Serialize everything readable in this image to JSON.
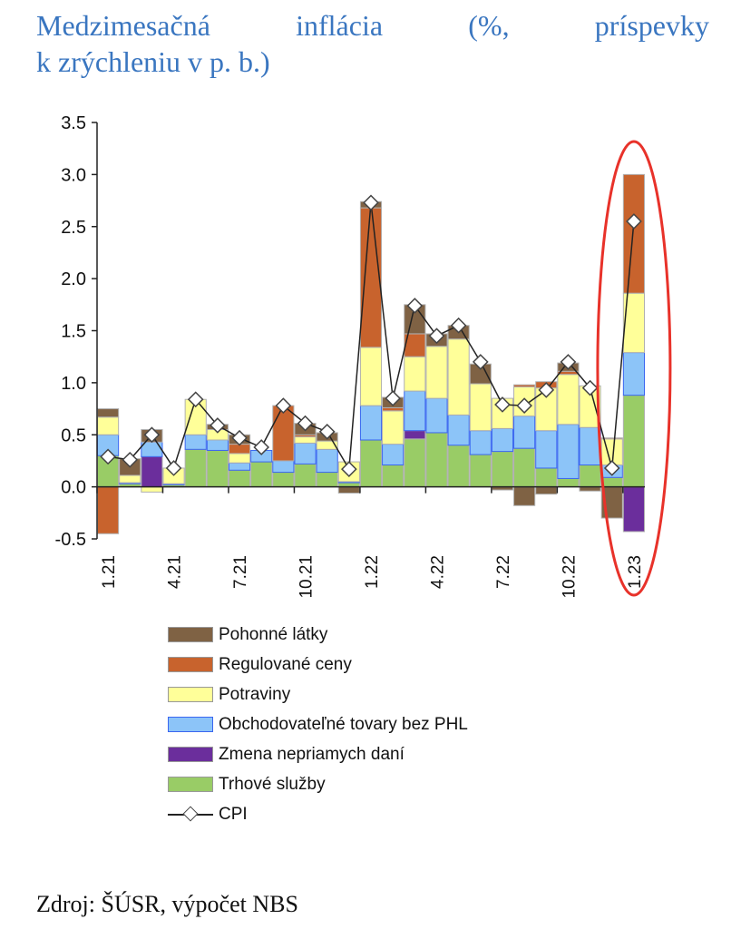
{
  "title_line1": "Medzimesačná inflácia (%, príspevky",
  "title_line2": "k zrýchleniu v p. b.)",
  "source": "Zdroj: ŠÚSR, výpočet NBS",
  "chart_data": {
    "type": "bar",
    "stacked": true,
    "title": "Medzimesačná inflácia (%, príspevky k zrýchleniu v p. b.)",
    "xlabel": "",
    "ylabel": "",
    "ylim": [
      -0.5,
      3.5
    ],
    "yticks": [
      "-0.5",
      "0.0",
      "0.5",
      "1.0",
      "1.5",
      "2.0",
      "2.5",
      "3.0",
      "3.5"
    ],
    "categories": [
      "1.21",
      "2.21",
      "3.21",
      "4.21",
      "5.21",
      "6.21",
      "7.21",
      "8.21",
      "9.21",
      "10.21",
      "11.21",
      "12.21",
      "1.22",
      "2.22",
      "3.22",
      "4.22",
      "5.22",
      "6.22",
      "7.22",
      "8.22",
      "9.22",
      "10.22",
      "11.22",
      "12.22",
      "1.23"
    ],
    "xtick_labels": [
      "1.21",
      "4.21",
      "7.21",
      "10.21",
      "1.22",
      "4.22",
      "7.22",
      "10.22",
      "1.23"
    ],
    "series": [
      {
        "name": "Trhové služby",
        "color": "#99cc66",
        "values": [
          0.3,
          0.03,
          0,
          0.02,
          0.36,
          0.35,
          0.16,
          0.24,
          0.14,
          0.22,
          0.14,
          0.04,
          0.45,
          0.21,
          0.46,
          0.52,
          0.4,
          0.31,
          0.34,
          0.37,
          0.18,
          0.08,
          0.21,
          0.09,
          0.88
        ]
      },
      {
        "name": "Zmena nepriamych daní",
        "color": "#6b2e9c",
        "values": [
          0,
          0,
          0.29,
          0,
          0,
          0,
          0,
          0,
          0,
          0,
          0,
          0,
          0,
          0,
          0.08,
          0,
          0,
          0,
          0,
          0,
          0,
          0,
          0,
          0,
          -0.43
        ]
      },
      {
        "name": "Obchodovateľné tovary bez PHL",
        "color": "#8cc4f8",
        "values": [
          0.2,
          0.01,
          0.14,
          0.01,
          0.14,
          0.1,
          0.07,
          0.11,
          0.11,
          0.2,
          0.22,
          0.01,
          0.33,
          0.2,
          0.38,
          0.33,
          0.29,
          0.23,
          0.22,
          0.31,
          0.36,
          0.52,
          0.36,
          0.12,
          0.41
        ]
      },
      {
        "name": "Potraviny",
        "color": "#ffff99",
        "values": [
          0.17,
          0.07,
          -0.05,
          0.15,
          0.34,
          0.1,
          0.09,
          0,
          0,
          0.06,
          0.08,
          0.19,
          0.56,
          0.32,
          0.33,
          0.5,
          0.73,
          0.45,
          0.29,
          0.28,
          0.41,
          0.48,
          0.4,
          0.25,
          0.57
        ]
      },
      {
        "name": "Regulované ceny",
        "color": "#c8632d",
        "values": [
          -0.45,
          0,
          0,
          0,
          0,
          0,
          0.09,
          0,
          0.53,
          0.02,
          0,
          0,
          1.34,
          0.03,
          0.22,
          0,
          0,
          0,
          0,
          0.02,
          0.06,
          0.03,
          0,
          0.01,
          1.14
        ]
      },
      {
        "name": "Pohonné látky",
        "color": "#7f6244",
        "values": [
          0.08,
          0.16,
          0.12,
          0,
          0,
          0.05,
          0.09,
          0,
          0,
          0.11,
          0.08,
          -0.06,
          0.06,
          0.1,
          0.28,
          0.12,
          0.13,
          0.19,
          -0.03,
          -0.18,
          -0.07,
          0.08,
          -0.04,
          -0.3,
          0
        ]
      }
    ],
    "line": {
      "name": "CPI",
      "values": [
        0.29,
        0.26,
        0.5,
        0.18,
        0.84,
        0.59,
        0.47,
        0.38,
        0.78,
        0.61,
        0.53,
        0.17,
        2.73,
        0.85,
        1.74,
        1.45,
        1.55,
        1.2,
        0.79,
        0.78,
        0.93,
        1.2,
        0.95,
        0.18,
        2.55
      ]
    },
    "legend": [
      "Pohonné látky",
      "Regulované ceny",
      "Potraviny",
      "Obchodovateľné tovary bez PHL",
      "Zmena nepriamych daní",
      "Trhové služby",
      "CPI"
    ],
    "legend_position": "bottom",
    "highlight": {
      "category": "1.23",
      "shape": "red-ellipse",
      "color": "#e8322a"
    }
  }
}
